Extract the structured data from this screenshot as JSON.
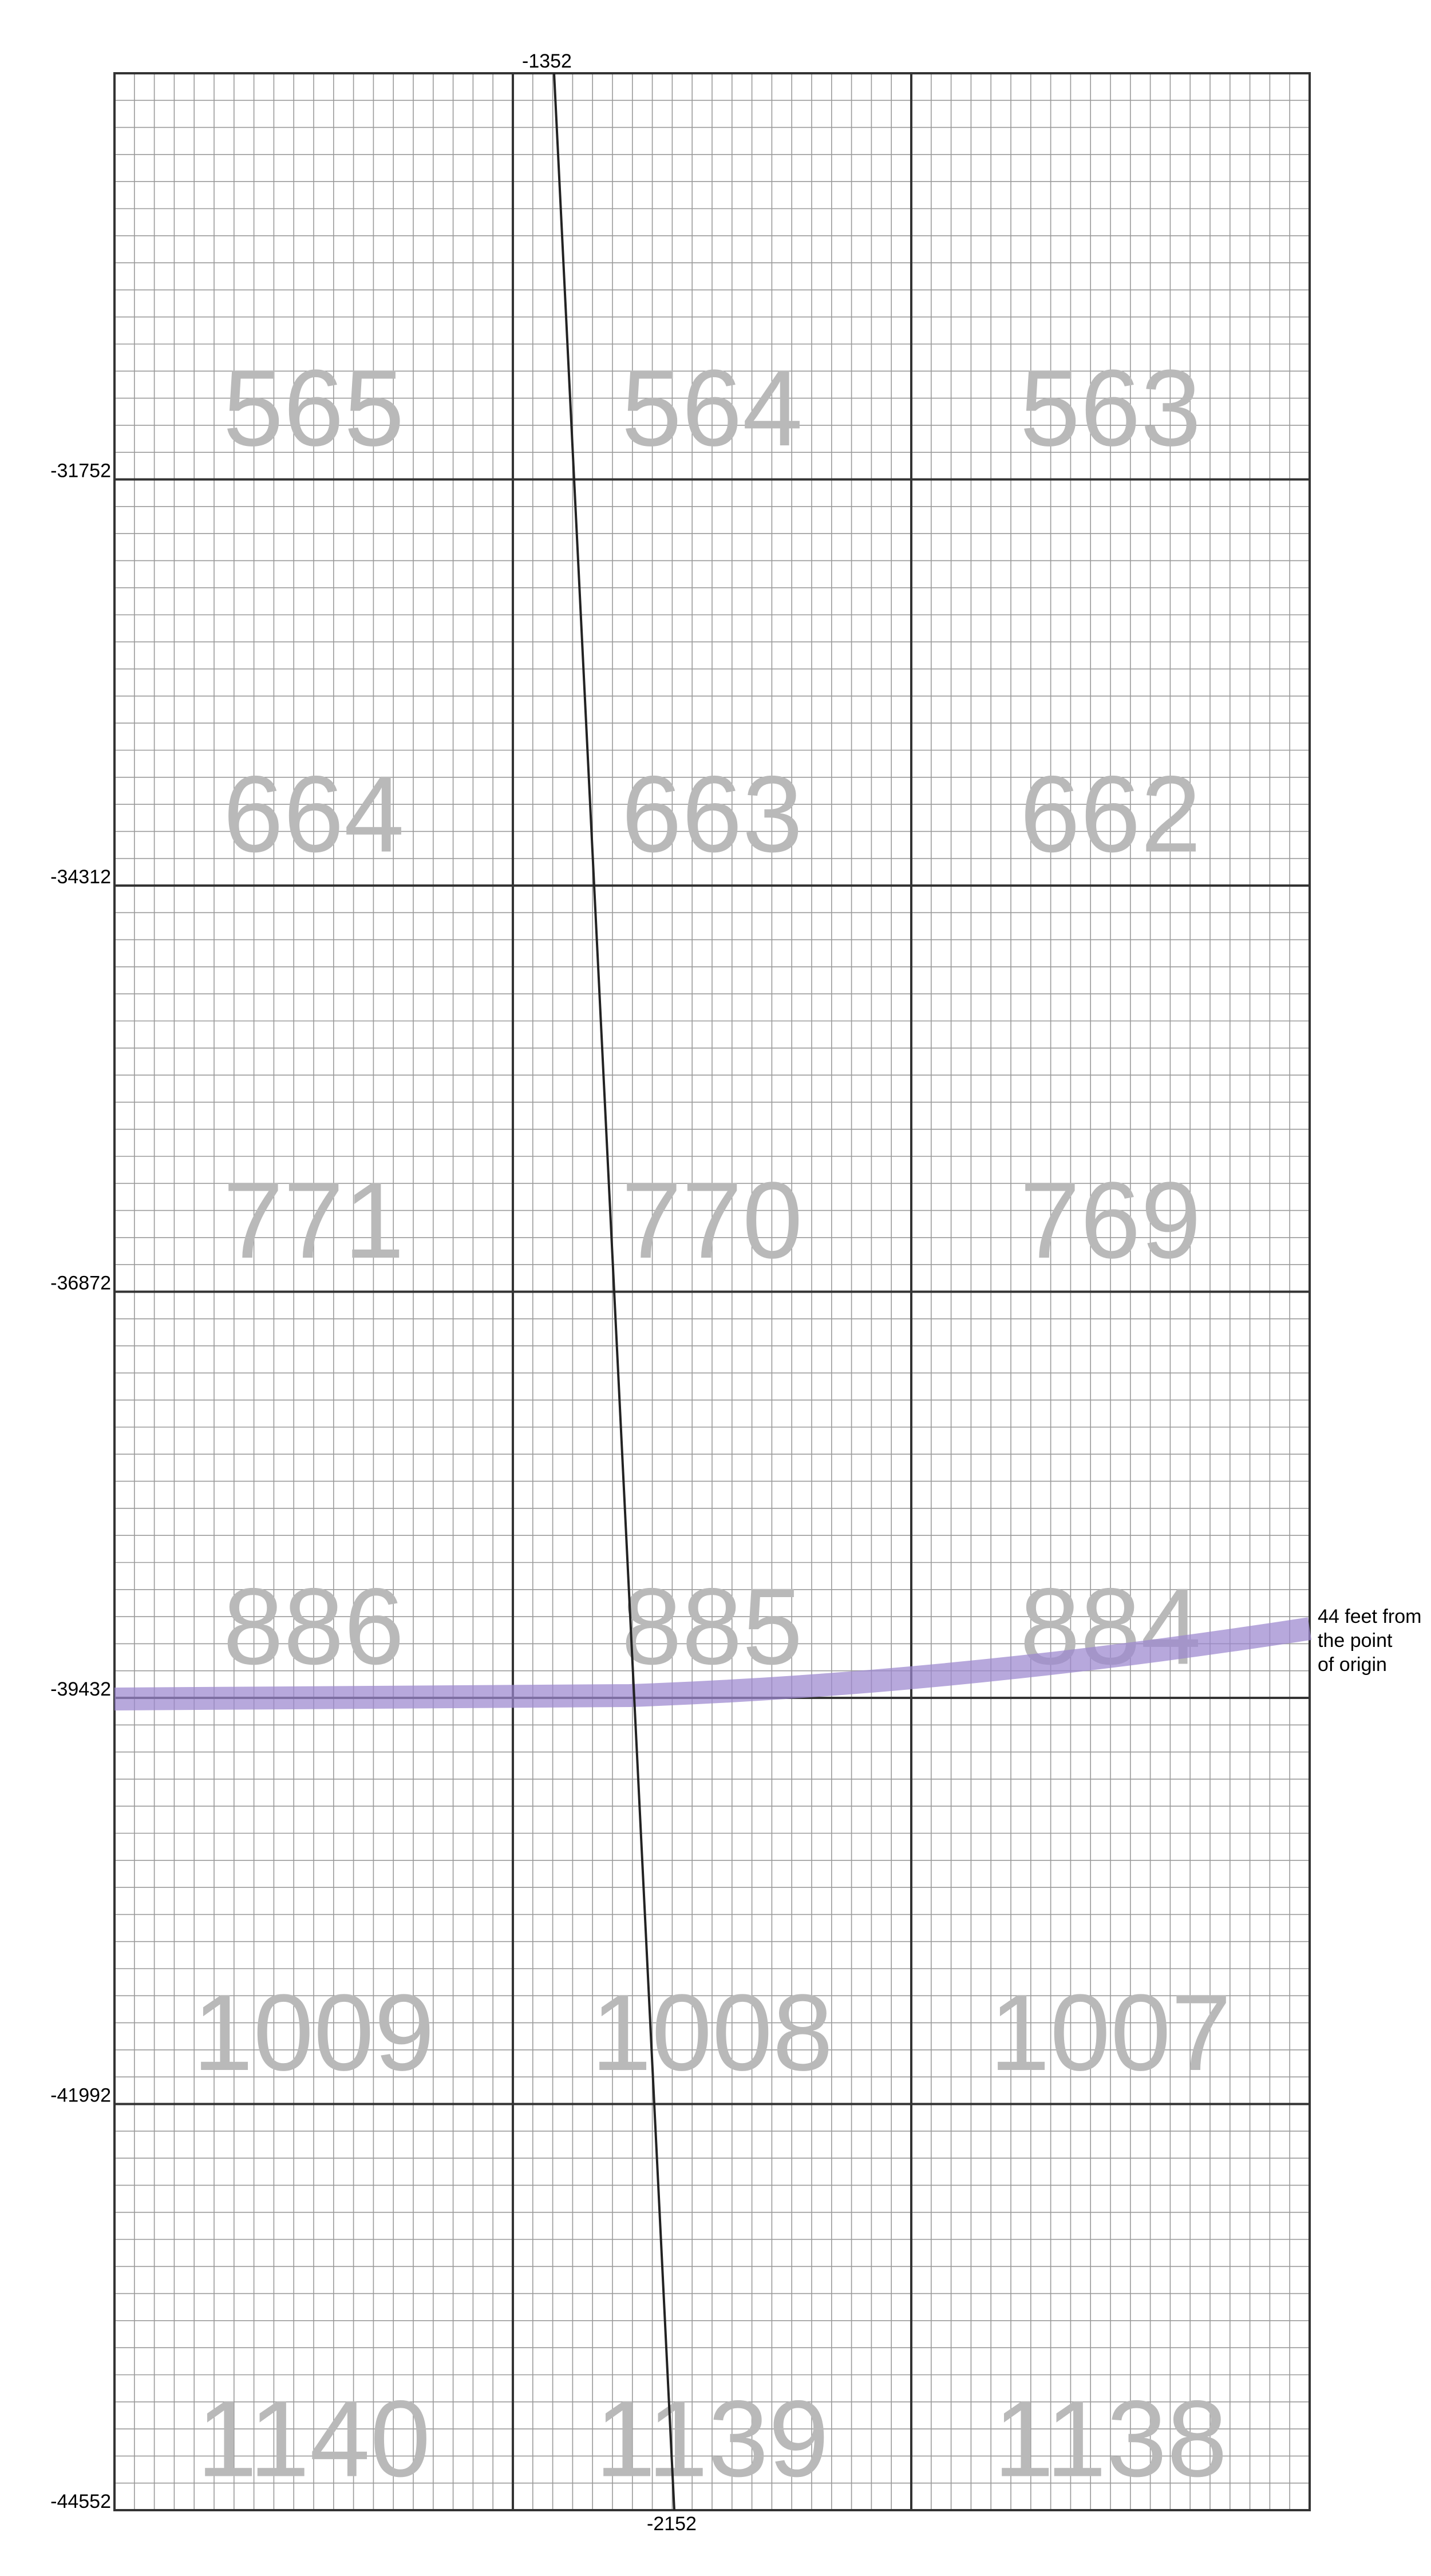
{
  "map": {
    "top_label": "-1352",
    "bottom_label": "-2152",
    "row_labels": [
      "-31752",
      "-34312",
      "-36872",
      "-39432",
      "-41992",
      "-44552"
    ],
    "cell_numbers": [
      [
        "565",
        "564",
        "563"
      ],
      [
        "664",
        "663",
        "662"
      ],
      [
        "771",
        "770",
        "769"
      ],
      [
        "886",
        "885",
        "884"
      ],
      [
        "1009",
        "1008",
        "1007"
      ],
      [
        "1140",
        "1139",
        "1138"
      ]
    ],
    "annotation": [
      "44 feet from",
      "the point",
      "of origin"
    ],
    "colors": {
      "major_grid": "#333333",
      "minor_grid": "#9a9a9a",
      "cell_number": "#b9b9b9",
      "band": "#9b87cf",
      "survey_line": "#222222"
    }
  }
}
